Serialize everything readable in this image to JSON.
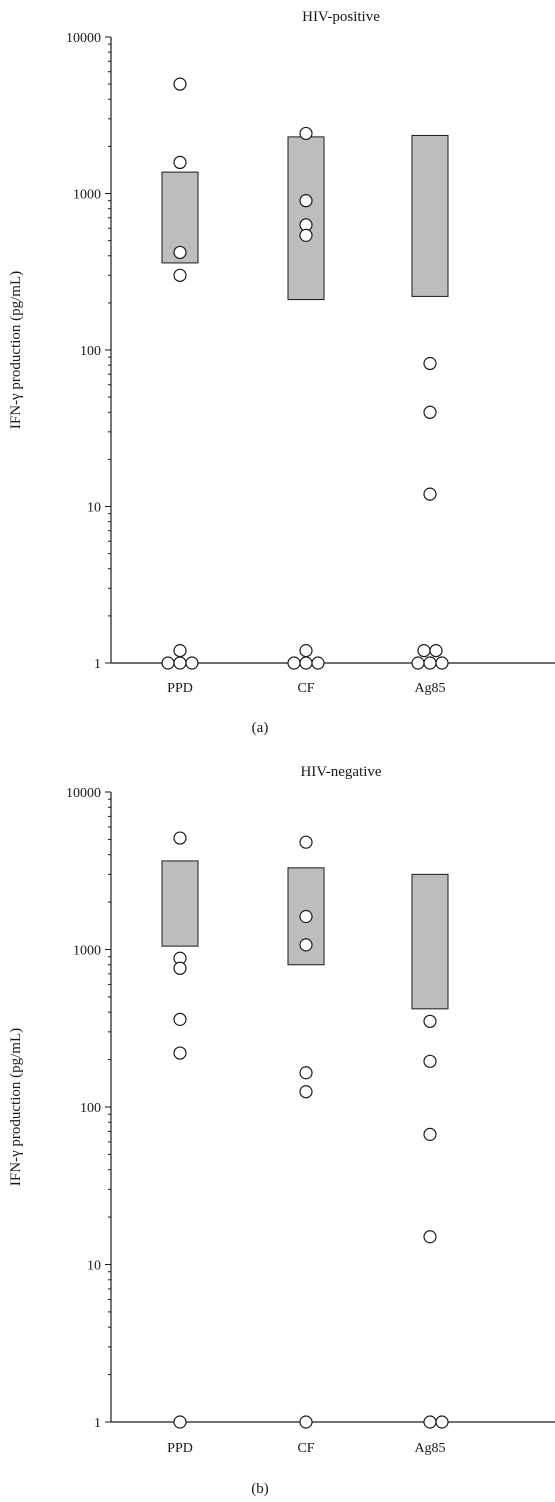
{
  "colors": {
    "box_fill": "#bdbdbd",
    "point_fill": "#ffffff",
    "stroke": "#1a1a1a"
  },
  "chart_data": [
    {
      "type": "scatter",
      "panel_label": "(a)",
      "title": "HIV-positive",
      "ylabel": "IFN-γ production (pg/mL)",
      "xlabel": "",
      "y_scale": "log",
      "ylim": [
        1,
        10000
      ],
      "y_ticks": [
        1,
        10,
        100,
        1000,
        10000
      ],
      "y_tick_labels": [
        "1",
        "10",
        "100",
        "1000",
        "10000"
      ],
      "categories": [
        "PPD",
        "CF",
        "Ag85"
      ],
      "boxes": [
        {
          "category": "PPD",
          "low": 360,
          "high": 1370
        },
        {
          "category": "CF",
          "low": 210,
          "high": 2300
        },
        {
          "category": "Ag85",
          "low": 220,
          "high": 2350
        }
      ],
      "points": [
        {
          "category": "PPD",
          "offset": 0,
          "value": 5000
        },
        {
          "category": "PPD",
          "offset": 0,
          "value": 1580
        },
        {
          "category": "PPD",
          "offset": 0,
          "value": 420
        },
        {
          "category": "PPD",
          "offset": 0,
          "value": 300
        },
        {
          "category": "PPD",
          "offset": 0,
          "value": 1.2
        },
        {
          "category": "PPD",
          "offset": -1,
          "value": 1
        },
        {
          "category": "PPD",
          "offset": 0,
          "value": 1
        },
        {
          "category": "PPD",
          "offset": 1,
          "value": 1
        },
        {
          "category": "CF",
          "offset": 0,
          "value": 2420
        },
        {
          "category": "CF",
          "offset": 0,
          "value": 900
        },
        {
          "category": "CF",
          "offset": 0,
          "value": 630
        },
        {
          "category": "CF",
          "offset": 0,
          "value": 540
        },
        {
          "category": "CF",
          "offset": 0,
          "value": 1.2
        },
        {
          "category": "CF",
          "offset": -1,
          "value": 1
        },
        {
          "category": "CF",
          "offset": 0,
          "value": 1
        },
        {
          "category": "CF",
          "offset": 1,
          "value": 1
        },
        {
          "category": "Ag85",
          "offset": 0,
          "value": 82
        },
        {
          "category": "Ag85",
          "offset": 0,
          "value": 40
        },
        {
          "category": "Ag85",
          "offset": 0,
          "value": 12
        },
        {
          "category": "Ag85",
          "offset": -0.5,
          "value": 1.2
        },
        {
          "category": "Ag85",
          "offset": 0.5,
          "value": 1.2
        },
        {
          "category": "Ag85",
          "offset": -1,
          "value": 1
        },
        {
          "category": "Ag85",
          "offset": 0,
          "value": 1
        },
        {
          "category": "Ag85",
          "offset": 1,
          "value": 1
        }
      ]
    },
    {
      "type": "scatter",
      "panel_label": "(b)",
      "title": "HIV-negative",
      "ylabel": "IFN-γ production (pg/mL)",
      "xlabel": "",
      "y_scale": "log",
      "ylim": [
        1,
        10000
      ],
      "y_ticks": [
        1,
        10,
        100,
        1000,
        10000
      ],
      "y_tick_labels": [
        "1",
        "10",
        "100",
        "1000",
        "10000"
      ],
      "categories": [
        "PPD",
        "CF",
        "Ag85"
      ],
      "boxes": [
        {
          "category": "PPD",
          "low": 1050,
          "high": 3650
        },
        {
          "category": "CF",
          "low": 800,
          "high": 3300
        },
        {
          "category": "Ag85",
          "low": 420,
          "high": 3000
        }
      ],
      "points": [
        {
          "category": "PPD",
          "offset": 0,
          "value": 5100
        },
        {
          "category": "PPD",
          "offset": 0,
          "value": 880
        },
        {
          "category": "PPD",
          "offset": 0,
          "value": 760
        },
        {
          "category": "PPD",
          "offset": 0,
          "value": 360
        },
        {
          "category": "PPD",
          "offset": 0,
          "value": 220
        },
        {
          "category": "PPD",
          "offset": 0,
          "value": 1
        },
        {
          "category": "CF",
          "offset": 0,
          "value": 4800
        },
        {
          "category": "CF",
          "offset": 0,
          "value": 1620
        },
        {
          "category": "CF",
          "offset": 0,
          "value": 1070
        },
        {
          "category": "CF",
          "offset": 0,
          "value": 165
        },
        {
          "category": "CF",
          "offset": 0,
          "value": 125
        },
        {
          "category": "CF",
          "offset": 0,
          "value": 1
        },
        {
          "category": "Ag85",
          "offset": 0,
          "value": 350
        },
        {
          "category": "Ag85",
          "offset": 0,
          "value": 195
        },
        {
          "category": "Ag85",
          "offset": 0,
          "value": 67
        },
        {
          "category": "Ag85",
          "offset": 0,
          "value": 15
        },
        {
          "category": "Ag85",
          "offset": 0,
          "value": 1
        },
        {
          "category": "Ag85",
          "offset": 1,
          "value": 1
        }
      ]
    }
  ]
}
